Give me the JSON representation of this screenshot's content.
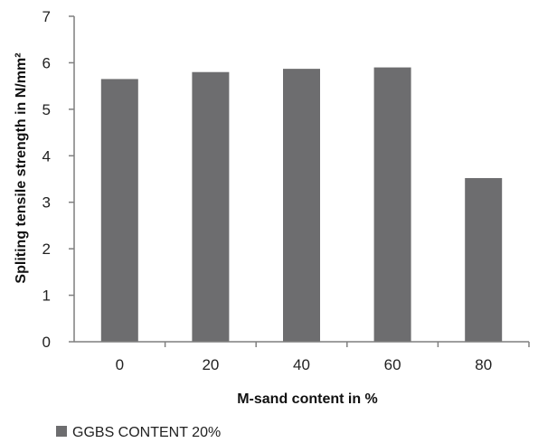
{
  "chart_data": {
    "type": "bar",
    "title": "",
    "xlabel": "M-sand content in %",
    "ylabel": "Spliting tensile strength in N/mm²",
    "categories": [
      "0",
      "20",
      "40",
      "60",
      "80"
    ],
    "series": [
      {
        "name": "GGBS CONTENT 20%",
        "values": [
          5.65,
          5.8,
          5.87,
          5.9,
          3.52
        ]
      }
    ],
    "ylim": [
      0,
      7
    ],
    "yticks": [
      "0",
      "1",
      "2",
      "3",
      "4",
      "5",
      "6",
      "7"
    ],
    "grid": false,
    "legend_position": "bottom-left",
    "colors": {
      "bar": "#6d6d6f",
      "axis": "#7f7f7f"
    }
  }
}
